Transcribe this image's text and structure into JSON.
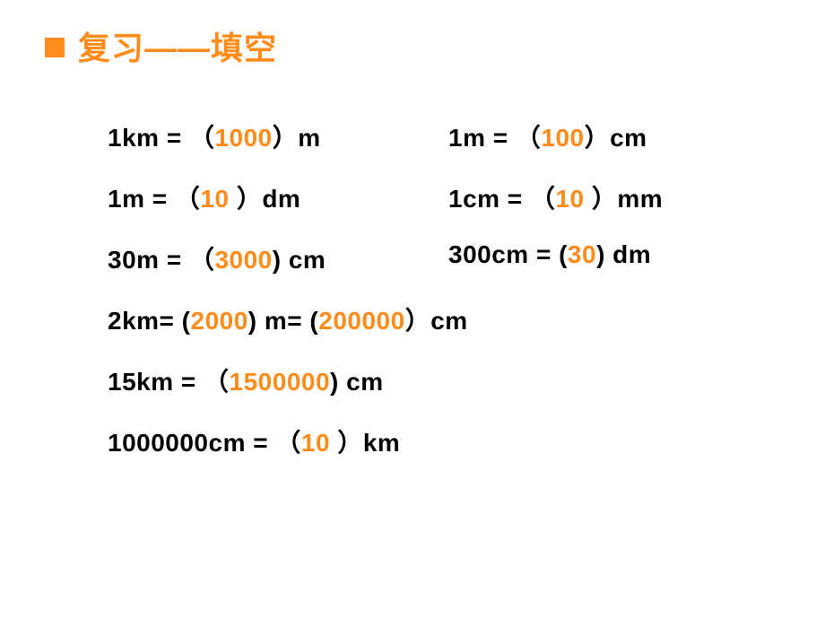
{
  "colors": {
    "accent": "#ff8c1a",
    "text": "#000000",
    "background": "#ffffff"
  },
  "fonts": {
    "title_size": 36,
    "body_size": 28
  },
  "title": "复习——填空",
  "rows": [
    {
      "left": {
        "pre": "1km = （",
        "ans": "1000",
        "post": "）m"
      },
      "right": {
        "pre": "1m = （",
        "ans": "100",
        "post": "）cm"
      }
    },
    {
      "left": {
        "pre": "1m = （",
        "ans": "10",
        "post": " ）dm"
      },
      "right": {
        "pre": "1cm = （",
        "ans": "10",
        "post": " ）mm"
      }
    },
    {
      "left": {
        "pre": "30m = （",
        "ans": "3000",
        "post": ")  cm"
      },
      "right": {
        "pre": "300cm =  (",
        "ans": "30",
        "post": ")  dm"
      }
    },
    {
      "left": {
        "pre": "2km=  (",
        "ans": "2000",
        "mid": ")  m=  (",
        "ans2": "200000",
        "post": "）cm"
      }
    },
    {
      "left": {
        "pre": "15km = （",
        "ans": "1500000",
        "post": ")  cm"
      }
    },
    {
      "left": {
        "pre": "1000000cm = （",
        "ans": "10",
        "post": " ）km"
      }
    }
  ]
}
